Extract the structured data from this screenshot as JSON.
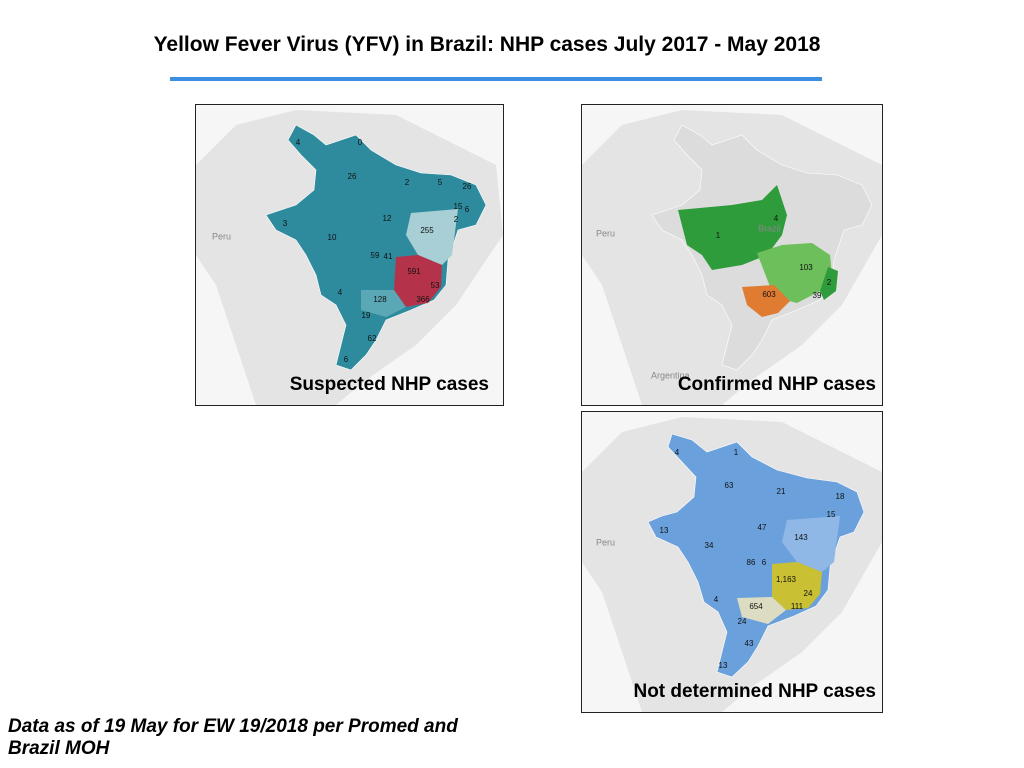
{
  "header": {
    "title": "Yellow Fever Virus (YFV) in Brazil: NHP cases July 2017 - May 2018"
  },
  "panels": [
    {
      "caption": "Suspected NHP cases",
      "place_labels": [
        "Peru"
      ],
      "region_labels": [
        "4",
        "0",
        "26",
        "2",
        "5",
        "26",
        "15",
        "6",
        "2",
        "3",
        "12",
        "255",
        "10",
        "59",
        "41",
        "591",
        "53",
        "4",
        "128",
        "366",
        "19",
        "62",
        "6"
      ]
    },
    {
      "caption": "Confirmed NHP cases",
      "place_labels": [
        "Peru",
        "Argentina",
        "Brazil"
      ],
      "region_labels": [
        "4",
        "1",
        "103",
        "2",
        "603",
        "39"
      ]
    },
    {
      "caption": "Not determined NHP cases",
      "place_labels": [
        "Peru"
      ],
      "region_labels": [
        "4",
        "1",
        "63",
        "21",
        "18",
        "15",
        "13",
        "47",
        "34",
        "143",
        "86",
        "6",
        "1,163",
        "24",
        "4",
        "654",
        "111",
        "24",
        "43",
        "13"
      ]
    }
  ],
  "footnote": "Data as of 19 May for EW 19/2018 per Promed and Brazil MOH"
}
